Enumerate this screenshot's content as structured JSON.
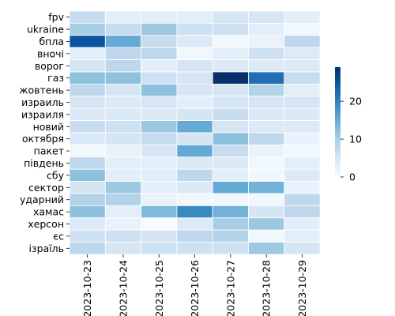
{
  "chart_data": {
    "type": "heatmap",
    "title": "",
    "xlabel": "",
    "ylabel": "",
    "x": [
      "2023-10-23",
      "2023-10-24",
      "2023-10-25",
      "2023-10-26",
      "2023-10-27",
      "2023-10-28",
      "2023-10-29"
    ],
    "y": [
      "fpv",
      "ukraine",
      "бпла",
      "вночі",
      "ворог",
      "газ",
      "жовтень",
      "израиль",
      "израиля",
      "новий",
      "октября",
      "пакет",
      "південь",
      "сбу",
      "сектор",
      "ударний",
      "хамас",
      "херсон",
      "єс",
      "ізраїль"
    ],
    "values": [
      [
        7,
        3,
        3,
        3,
        5,
        5,
        3
      ],
      [
        10,
        7,
        11,
        6,
        6,
        3,
        1
      ],
      [
        25,
        15,
        7,
        4,
        1,
        2,
        8
      ],
      [
        3,
        8,
        8,
        1,
        3,
        6,
        4
      ],
      [
        5,
        8,
        3,
        5,
        4,
        4,
        4
      ],
      [
        12,
        12,
        6,
        5,
        29,
        22,
        7
      ],
      [
        8,
        5,
        12,
        5,
        5,
        9,
        3
      ],
      [
        5,
        4,
        5,
        3,
        5,
        5,
        5
      ],
      [
        4,
        4,
        4,
        5,
        7,
        4,
        4
      ],
      [
        7,
        6,
        11,
        15,
        5,
        4,
        4
      ],
      [
        4,
        5,
        7,
        5,
        12,
        8,
        2
      ],
      [
        1,
        2,
        5,
        15,
        7,
        2,
        1
      ],
      [
        8,
        3,
        3,
        4,
        4,
        1,
        3
      ],
      [
        12,
        3,
        3,
        8,
        3,
        1,
        4
      ],
      [
        5,
        11,
        3,
        4,
        15,
        14,
        2
      ],
      [
        9,
        9,
        2,
        1,
        1,
        1,
        8
      ],
      [
        12,
        3,
        13,
        19,
        14,
        5,
        8
      ],
      [
        4,
        2,
        0,
        4,
        10,
        11,
        3
      ],
      [
        6,
        6,
        5,
        8,
        9,
        1,
        3
      ],
      [
        8,
        5,
        6,
        6,
        6,
        11,
        5
      ]
    ],
    "vmin": 0,
    "vmax": 29,
    "colorbar": {
      "ticks": [
        0,
        10,
        20
      ],
      "tick_labels": [
        "0",
        "10",
        "20"
      ]
    },
    "colormap": [
      "#f7fbff",
      "#deebf7",
      "#c6dbef",
      "#9ecae1",
      "#6baed6",
      "#4292c6",
      "#2171b5",
      "#08519c",
      "#08306b"
    ],
    "grid": false
  }
}
